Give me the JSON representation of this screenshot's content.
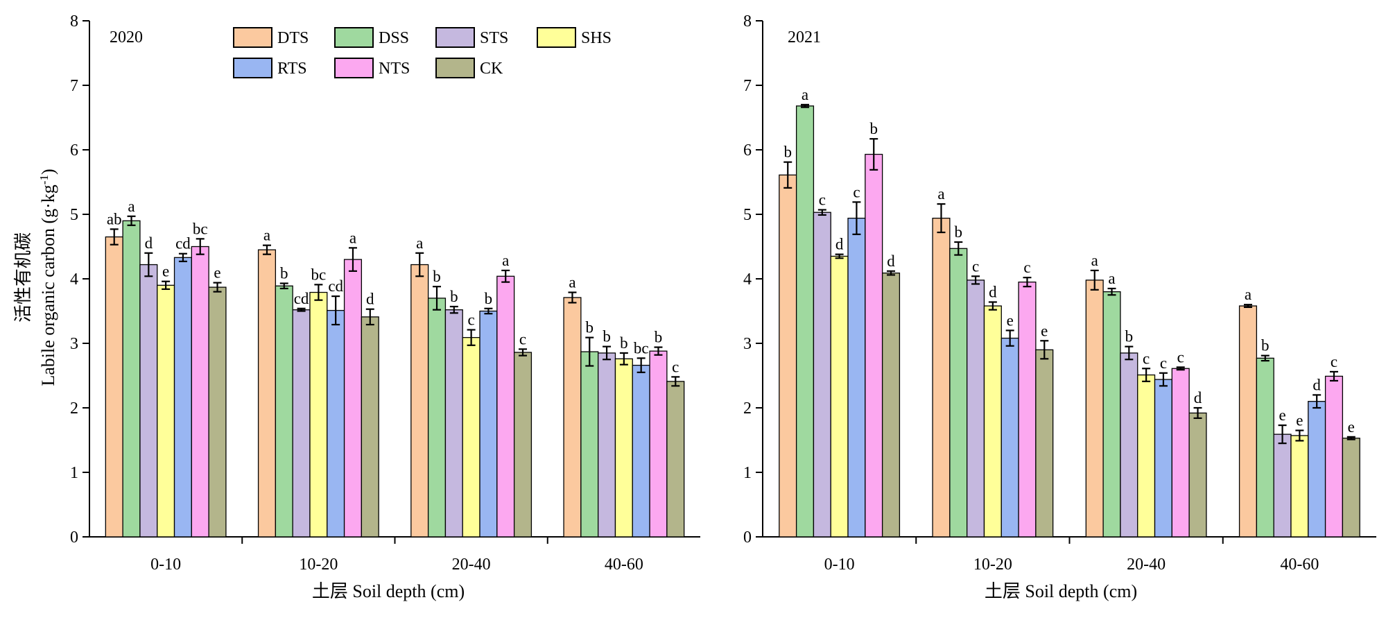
{
  "chart_data": [
    {
      "type": "bar",
      "panel_label": "2020",
      "ylabel_cn": "活性有机碳",
      "ylabel": "Labile organic carbon (g·kg-1)",
      "xlabel": "土层 Soil depth (cm)",
      "ylim": [
        0,
        8
      ],
      "yticks": [
        "0",
        "1",
        "2",
        "3",
        "4",
        "5",
        "6",
        "7",
        "8"
      ],
      "categories": [
        "0-10",
        "10-20",
        "20-40",
        "40-60"
      ],
      "legend_position": "top-center",
      "grid": false,
      "series": [
        {
          "name": "DTS",
          "color": "#fbc99f",
          "values": [
            4.65,
            4.45,
            4.22,
            3.71
          ],
          "errors": [
            0.12,
            0.07,
            0.18,
            0.08
          ],
          "letters": [
            "ab",
            "a",
            "a",
            "a"
          ]
        },
        {
          "name": "DSS",
          "color": "#9fd99f",
          "values": [
            4.9,
            3.89,
            3.7,
            2.87
          ],
          "errors": [
            0.07,
            0.04,
            0.18,
            0.22
          ],
          "letters": [
            "a",
            "b",
            "b",
            "b"
          ]
        },
        {
          "name": "STS",
          "color": "#c5b8df",
          "values": [
            4.22,
            3.52,
            3.52,
            2.85
          ],
          "errors": [
            0.18,
            0.02,
            0.05,
            0.1
          ],
          "letters": [
            "d",
            "cd",
            "b",
            "b"
          ]
        },
        {
          "name": "SHS",
          "color": "#ffff99",
          "values": [
            3.9,
            3.79,
            3.09,
            2.76
          ],
          "errors": [
            0.06,
            0.12,
            0.12,
            0.09
          ],
          "letters": [
            "e",
            "bc",
            "c",
            "b"
          ]
        },
        {
          "name": "RTS",
          "color": "#99b6f2",
          "values": [
            4.33,
            3.51,
            3.5,
            2.66
          ],
          "errors": [
            0.06,
            0.22,
            0.04,
            0.11
          ],
          "letters": [
            "cd",
            "cd",
            "b",
            "bc"
          ]
        },
        {
          "name": "NTS",
          "color": "#fca8f0",
          "values": [
            4.5,
            4.3,
            4.04,
            2.88
          ],
          "errors": [
            0.12,
            0.18,
            0.09,
            0.06
          ],
          "letters": [
            "bc",
            "a",
            "a",
            "b"
          ]
        },
        {
          "name": "CK",
          "color": "#b3b58b",
          "values": [
            3.87,
            3.41,
            2.86,
            2.41
          ],
          "errors": [
            0.07,
            0.12,
            0.05,
            0.07
          ],
          "letters": [
            "e",
            "d",
            "c",
            "c"
          ]
        }
      ]
    },
    {
      "type": "bar",
      "panel_label": "2021",
      "ylabel": "",
      "xlabel": "土层 Soil depth (cm)",
      "ylim": [
        0,
        8
      ],
      "yticks": [
        "0",
        "1",
        "2",
        "3",
        "4",
        "5",
        "6",
        "7",
        "8"
      ],
      "categories": [
        "0-10",
        "10-20",
        "20-40",
        "40-60"
      ],
      "grid": false,
      "series": [
        {
          "name": "DTS",
          "color": "#fbc99f",
          "values": [
            5.61,
            4.94,
            3.98,
            3.58
          ],
          "errors": [
            0.2,
            0.22,
            0.15,
            0.02
          ],
          "letters": [
            "b",
            "a",
            "a",
            "a"
          ]
        },
        {
          "name": "DSS",
          "color": "#9fd99f",
          "values": [
            6.68,
            4.47,
            3.8,
            2.77
          ],
          "errors": [
            0.02,
            0.1,
            0.05,
            0.04
          ],
          "letters": [
            "a",
            "b",
            "a",
            "b"
          ]
        },
        {
          "name": "STS",
          "color": "#c5b8df",
          "values": [
            5.03,
            3.98,
            2.85,
            1.59
          ],
          "errors": [
            0.04,
            0.06,
            0.1,
            0.14
          ],
          "letters": [
            "c",
            "c",
            "b",
            "e"
          ]
        },
        {
          "name": "SHS",
          "color": "#ffff99",
          "values": [
            4.35,
            3.58,
            2.51,
            1.57
          ],
          "errors": [
            0.03,
            0.06,
            0.1,
            0.08
          ],
          "letters": [
            "d",
            "d",
            "c",
            "e"
          ]
        },
        {
          "name": "RTS",
          "color": "#99b6f2",
          "values": [
            4.94,
            3.08,
            2.44,
            2.1
          ],
          "errors": [
            0.25,
            0.12,
            0.1,
            0.1
          ],
          "letters": [
            "c",
            "e",
            "c",
            "d"
          ]
        },
        {
          "name": "NTS",
          "color": "#fca8f0",
          "values": [
            5.93,
            3.95,
            2.61,
            2.49
          ],
          "errors": [
            0.24,
            0.07,
            0.02,
            0.07
          ],
          "letters": [
            "b",
            "c",
            "c",
            "c"
          ]
        },
        {
          "name": "CK",
          "color": "#b3b58b",
          "values": [
            4.09,
            2.9,
            1.92,
            1.53
          ],
          "errors": [
            0.03,
            0.14,
            0.08,
            0.02
          ],
          "letters": [
            "d",
            "e",
            "d",
            "e"
          ]
        }
      ]
    }
  ]
}
